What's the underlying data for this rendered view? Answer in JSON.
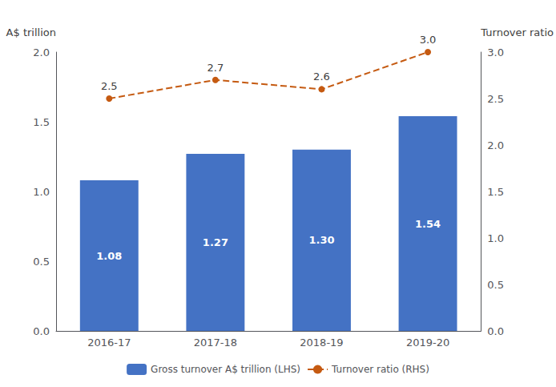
{
  "chart_data": {
    "type": "bar",
    "categories": [
      "2016-17",
      "2017-18",
      "2018-19",
      "2019-20"
    ],
    "ylabel": "A$ trillion",
    "y2label": "Turnover ratio",
    "ylim": [
      0.0,
      2.0
    ],
    "yticks": [
      {
        "value": 0,
        "label": "0.0"
      },
      0.5,
      {
        "value": 1,
        "label": "1.0"
      },
      1.5,
      {
        "value": 2,
        "label": "2.0"
      }
    ],
    "y2lim": [
      0.0,
      3.0
    ],
    "y2ticks": [
      {
        "value": 0,
        "label": "0.0"
      },
      0.5,
      {
        "value": 1,
        "label": "1.0"
      },
      1.5,
      {
        "value": 2,
        "label": "2.0"
      },
      2.5,
      {
        "value": 3,
        "label": "3.0"
      }
    ],
    "grid": false,
    "legend": "bottom",
    "series": [
      {
        "name": "Gross turnover A$ trillion (LHS)",
        "type": "bar",
        "color": "#4472C4",
        "values": [
          1.08,
          1.27,
          1.3,
          1.54
        ],
        "data_labels": true,
        "value_labels": [
          "1.08",
          "1.27",
          "1.30",
          "1.54"
        ]
      },
      {
        "name": "Turnover ratio (RHS)",
        "type": "line",
        "axis": "y2",
        "color": "#C55A11",
        "line_style": "dashed",
        "marker": "circle",
        "values": [
          2.5,
          2.7,
          2.6,
          3.0
        ],
        "data_labels": true,
        "value_labels": [
          "2.5",
          "2.7",
          "2.6",
          "3.0"
        ]
      }
    ]
  }
}
